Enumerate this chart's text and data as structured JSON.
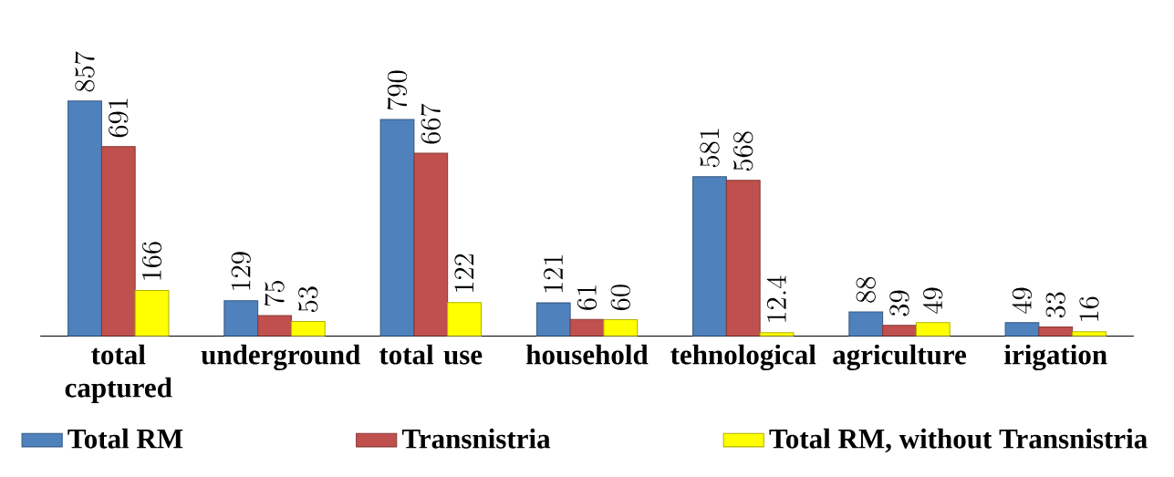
{
  "chart_data": {
    "type": "bar",
    "categories": [
      "total captured",
      "underground",
      "total use",
      "household",
      "tehnological",
      "agriculture",
      "irigation"
    ],
    "series": [
      {
        "name": "Total RM",
        "color": "#4f81bd",
        "values": [
          857,
          129,
          790,
          121,
          581,
          88,
          49
        ]
      },
      {
        "name": "Transnistria",
        "color": "#c0504d",
        "values": [
          691,
          75,
          667,
          61,
          568,
          39,
          33
        ]
      },
      {
        "name": "Total RM, without Transnistria",
        "color": "#ffff00",
        "values": [
          166,
          53,
          122,
          60,
          12.4,
          49,
          16
        ]
      }
    ],
    "data_labels": true,
    "legend": "bottom"
  }
}
